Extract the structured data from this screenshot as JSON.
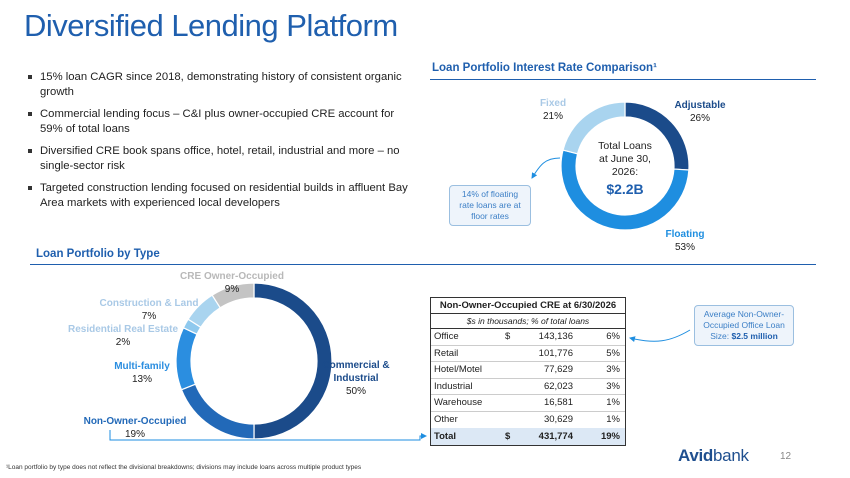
{
  "title": "Diversified Lending Platform",
  "bullets": [
    "15% loan CAGR since 2018, demonstrating history of consistent organic growth",
    "Commercial lending focus – C&I plus owner-occupied CRE account for 59% of total loans",
    "Diversified CRE book spans office, hotel, retail, industrial and more – no single-sector risk",
    "Targeted construction lending focused on residential builds in affluent Bay Area markets with experienced local developers"
  ],
  "rate_chart": {
    "heading": "Loan Portfolio Interest Rate Comparison¹",
    "center": {
      "line1": "Total Loans",
      "line2": "at June 30,",
      "line3": "2026:",
      "amount": "$2.2B"
    },
    "callout": "14% of floating rate loans are at floor rates",
    "labels": [
      {
        "name": "Fixed",
        "pct": "21%"
      },
      {
        "name": "Adjustable",
        "pct": "26%"
      },
      {
        "name": "Floating",
        "pct": "53%"
      }
    ]
  },
  "type_chart": {
    "heading": "Loan Portfolio by Type",
    "labels": [
      {
        "name": "CRE Owner-Occupied",
        "pct": "9%"
      },
      {
        "name": "Construction & Land",
        "pct": "7%"
      },
      {
        "name": "Residential Real Estate",
        "pct": "2%"
      },
      {
        "name": "Multi-family",
        "pct": "13%"
      },
      {
        "name": "Non-Owner-Occupied",
        "pct": "19%"
      },
      {
        "name": "Commercial & Industrial",
        "pct": "50%"
      }
    ]
  },
  "chart_data": [
    {
      "type": "pie",
      "title": "Loan Portfolio Interest Rate Comparison¹",
      "categories": [
        "Adjustable",
        "Floating",
        "Fixed"
      ],
      "values": [
        26,
        53,
        21
      ],
      "colors": [
        "#1b4b8a",
        "#1e8ee0",
        "#a9d4ef"
      ]
    },
    {
      "type": "pie",
      "title": "Loan Portfolio by Type",
      "categories": [
        "Commercial & Industrial",
        "Non-Owner-Occupied",
        "Multi-family",
        "Residential Real Estate",
        "Construction & Land",
        "CRE Owner-Occupied"
      ],
      "values": [
        50,
        19,
        13,
        2,
        7,
        9
      ],
      "colors": [
        "#1b4b8a",
        "#2269b8",
        "#2b8ee0",
        "#8fc9ee",
        "#a9d4ef",
        "#c4c4c4"
      ]
    }
  ],
  "table": {
    "title": "Non-Owner-Occupied CRE at 6/30/2026",
    "subtitle": "$s in thousands; % of total loans",
    "rows": [
      {
        "label": "Office",
        "cur": "$",
        "amount": "143,136",
        "pct": "6%"
      },
      {
        "label": "Retail",
        "cur": "",
        "amount": "101,776",
        "pct": "5%"
      },
      {
        "label": "Hotel/Motel",
        "cur": "",
        "amount": "77,629",
        "pct": "3%"
      },
      {
        "label": "Industrial",
        "cur": "",
        "amount": "62,023",
        "pct": "3%"
      },
      {
        "label": "Warehouse",
        "cur": "",
        "amount": "16,581",
        "pct": "1%"
      },
      {
        "label": "Other",
        "cur": "",
        "amount": "30,629",
        "pct": "1%"
      }
    ],
    "total": {
      "label": "Total",
      "cur": "$",
      "amount": "431,774",
      "pct": "19%"
    }
  },
  "office_callout": {
    "text": "Average Non-Owner-Occupied Office Loan Size:",
    "value": "$2.5 million"
  },
  "footnote": "¹Loan portfolio by type does not reflect the divisional breakdowns; divisions may include loans across multiple product types",
  "logo": {
    "bold": "Avid",
    "rest": "bank"
  },
  "page_number": "12"
}
